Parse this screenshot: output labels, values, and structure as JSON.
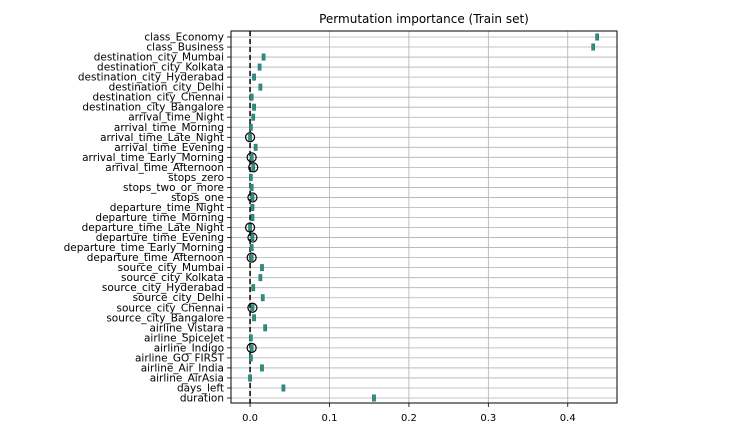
{
  "chart_data": {
    "type": "box",
    "title": "Permutation importance (Train set)",
    "xlabel": "",
    "ylabel": "",
    "xlim": [
      -0.024,
      0.462
    ],
    "xticks": [
      0.0,
      0.1,
      0.2,
      0.3,
      0.4
    ],
    "xtick_labels": [
      "0.0",
      "0.1",
      "0.2",
      "0.3",
      "0.4"
    ],
    "grid": true,
    "reference_line": {
      "x": 0.0,
      "style": "dashed",
      "color": "#000000"
    },
    "box_color": "#2f8f83",
    "flier_color": "#000000",
    "features": [
      {
        "label": "class_Economy",
        "value": 0.437,
        "outlier": null
      },
      {
        "label": "class_Business",
        "value": 0.432,
        "outlier": null
      },
      {
        "label": "destination_city_Mumbai",
        "value": 0.017,
        "outlier": null
      },
      {
        "label": "destination_city_Kolkata",
        "value": 0.012,
        "outlier": null
      },
      {
        "label": "destination_city_Hyderabad",
        "value": 0.005,
        "outlier": null
      },
      {
        "label": "destination_city_Delhi",
        "value": 0.013,
        "outlier": null
      },
      {
        "label": "destination_city_Chennai",
        "value": 0.002,
        "outlier": null
      },
      {
        "label": "destination_city_Bangalore",
        "value": 0.005,
        "outlier": null
      },
      {
        "label": "arrival_time_Night",
        "value": 0.004,
        "outlier": null
      },
      {
        "label": "arrival_time_Morning",
        "value": 0.001,
        "outlier": null
      },
      {
        "label": "arrival_time_Late_Night",
        "value": 0.0,
        "outlier": 0.0
      },
      {
        "label": "arrival_time_Evening",
        "value": 0.007,
        "outlier": null
      },
      {
        "label": "arrival_time_Early_Morning",
        "value": 0.002,
        "outlier": 0.002
      },
      {
        "label": "arrival_time_Afternoon",
        "value": 0.004,
        "outlier": 0.004
      },
      {
        "label": "stops_zero",
        "value": 0.001,
        "outlier": null
      },
      {
        "label": "stops_two_or_more",
        "value": 0.002,
        "outlier": null
      },
      {
        "label": "stops_one",
        "value": 0.003,
        "outlier": 0.003
      },
      {
        "label": "departure_time_Night",
        "value": 0.003,
        "outlier": null
      },
      {
        "label": "departure_time_Morning",
        "value": 0.003,
        "outlier": null
      },
      {
        "label": "departure_time_Late_Night",
        "value": 0.0,
        "outlier": 0.0
      },
      {
        "label": "departure_time_Evening",
        "value": 0.003,
        "outlier": 0.003
      },
      {
        "label": "departure_time_Early_Morning",
        "value": 0.002,
        "outlier": null
      },
      {
        "label": "departure_time_Afternoon",
        "value": 0.002,
        "outlier": 0.002
      },
      {
        "label": "source_city_Mumbai",
        "value": 0.015,
        "outlier": null
      },
      {
        "label": "source_city_Kolkata",
        "value": 0.013,
        "outlier": null
      },
      {
        "label": "source_city_Hyderabad",
        "value": 0.004,
        "outlier": null
      },
      {
        "label": "source_city_Delhi",
        "value": 0.016,
        "outlier": null
      },
      {
        "label": "source_city_Chennai",
        "value": 0.003,
        "outlier": 0.003
      },
      {
        "label": "source_city_Bangalore",
        "value": 0.005,
        "outlier": null
      },
      {
        "label": "airline_Vistara",
        "value": 0.019,
        "outlier": null
      },
      {
        "label": "airline_SpiceJet",
        "value": 0.001,
        "outlier": null
      },
      {
        "label": "airline_Indigo",
        "value": 0.002,
        "outlier": 0.002
      },
      {
        "label": "airline_GO_FIRST",
        "value": 0.001,
        "outlier": null
      },
      {
        "label": "airline_Air_India",
        "value": 0.015,
        "outlier": null
      },
      {
        "label": "airline_AirAsia",
        "value": 0.0,
        "outlier": null
      },
      {
        "label": "days_left",
        "value": 0.042,
        "outlier": null
      },
      {
        "label": "duration",
        "value": 0.156,
        "outlier": null
      }
    ]
  }
}
